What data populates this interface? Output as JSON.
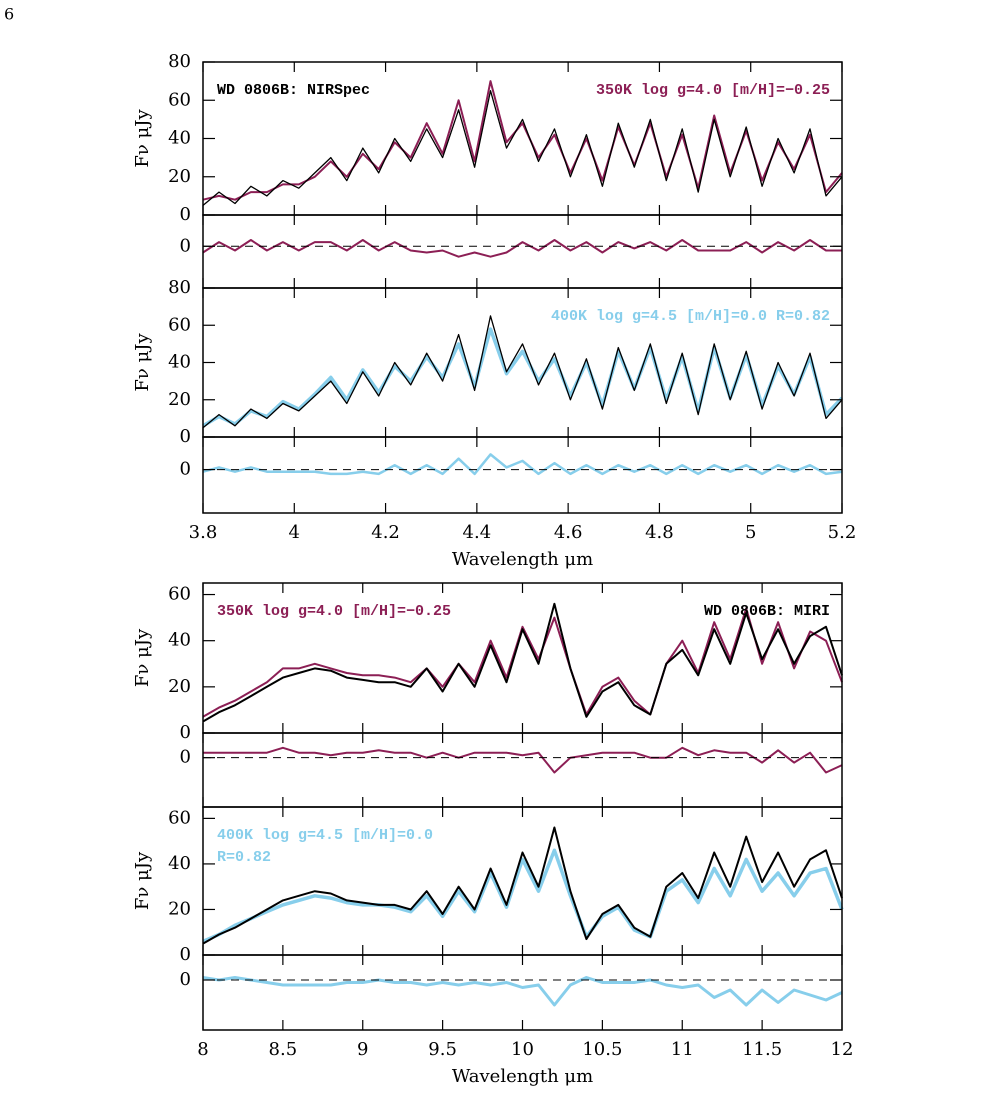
{
  "page_number": "6",
  "chart_data": [
    {
      "type": "line",
      "ylabel": "Fν μJy",
      "xlim": [
        3.8,
        5.2
      ],
      "xticks": [
        3.8,
        4,
        4.2,
        4.4,
        4.6,
        4.8,
        5,
        5.2
      ],
      "ylim": [
        0,
        80
      ],
      "yticks": [
        0,
        20,
        40,
        60,
        80
      ],
      "grid": false,
      "annotations": [
        {
          "text": "WD 0806B: NIRSpec",
          "color": "#000000",
          "position": "left"
        },
        {
          "text": "350K log g=4.0 [m/H]=−0.25",
          "color": "#8c1f55",
          "position": "right"
        }
      ],
      "x": [
        3.8,
        3.835,
        3.87,
        3.905,
        3.94,
        3.975,
        4.01,
        4.045,
        4.08,
        4.115,
        4.15,
        4.185,
        4.22,
        4.255,
        4.29,
        4.325,
        4.36,
        4.395,
        4.43,
        4.465,
        4.5,
        4.535,
        4.57,
        4.605,
        4.64,
        4.675,
        4.71,
        4.745,
        4.78,
        4.815,
        4.85,
        4.885,
        4.92,
        4.955,
        4.99,
        5.025,
        5.06,
        5.095,
        5.13,
        5.165,
        5.2
      ],
      "series": [
        {
          "color": "#8c1f55",
          "width": 2,
          "values": [
            8,
            10,
            8,
            12,
            12,
            16,
            16,
            20,
            28,
            20,
            32,
            24,
            38,
            30,
            48,
            32,
            60,
            28,
            70,
            38,
            48,
            30,
            42,
            22,
            40,
            18,
            46,
            26,
            48,
            20,
            42,
            14,
            52,
            22,
            44,
            18,
            38,
            24,
            42,
            12,
            22
          ]
        },
        {
          "color": "#000000",
          "width": 1.3,
          "values": [
            5,
            12,
            6,
            15,
            10,
            18,
            14,
            22,
            30,
            18,
            35,
            22,
            40,
            28,
            45,
            30,
            55,
            25,
            65,
            35,
            50,
            28,
            45,
            20,
            42,
            15,
            48,
            25,
            50,
            18,
            45,
            12,
            50,
            20,
            46,
            15,
            40,
            22,
            45,
            10,
            20
          ]
        }
      ]
    },
    {
      "type": "line",
      "xlim": [
        3.8,
        5.2
      ],
      "xticks": [
        3.8,
        4,
        4.2,
        4.4,
        4.6,
        4.8,
        5,
        5.2
      ],
      "ylim": [
        -20,
        15
      ],
      "yticks": [
        0
      ],
      "grid": "dashed",
      "x": [
        3.8,
        3.835,
        3.87,
        3.905,
        3.94,
        3.975,
        4.01,
        4.045,
        4.08,
        4.115,
        4.15,
        4.185,
        4.22,
        4.255,
        4.29,
        4.325,
        4.36,
        4.395,
        4.43,
        4.465,
        4.5,
        4.535,
        4.57,
        4.605,
        4.64,
        4.675,
        4.71,
        4.745,
        4.78,
        4.815,
        4.85,
        4.885,
        4.92,
        4.955,
        4.99,
        5.025,
        5.06,
        5.095,
        5.13,
        5.165,
        5.2
      ],
      "series": [
        {
          "color": "#8c1f55",
          "width": 2,
          "values": [
            -3,
            2,
            -2,
            3,
            -2,
            2,
            -2,
            2,
            2,
            -2,
            3,
            -2,
            2,
            -2,
            -3,
            -2,
            -5,
            -3,
            -5,
            -3,
            2,
            -2,
            3,
            -2,
            2,
            -3,
            2,
            -1,
            2,
            -2,
            3,
            -2,
            -2,
            -2,
            2,
            -3,
            2,
            -2,
            3,
            -2,
            -2
          ]
        }
      ]
    },
    {
      "type": "line",
      "ylabel": "Fν μJy",
      "xlim": [
        3.8,
        5.2
      ],
      "xticks": [
        3.8,
        4,
        4.2,
        4.4,
        4.6,
        4.8,
        5,
        5.2
      ],
      "ylim": [
        0,
        80
      ],
      "yticks": [
        0,
        20,
        40,
        60,
        80
      ],
      "grid": false,
      "annotations": [
        {
          "text": "400K log g=4.5 [m/H]=0.0 R=0.82",
          "color": "#87ceeb",
          "position": "right"
        }
      ],
      "x": [
        3.8,
        3.835,
        3.87,
        3.905,
        3.94,
        3.975,
        4.01,
        4.045,
        4.08,
        4.115,
        4.15,
        4.185,
        4.22,
        4.255,
        4.29,
        4.325,
        4.36,
        4.395,
        4.43,
        4.465,
        4.5,
        4.535,
        4.57,
        4.605,
        4.64,
        4.675,
        4.71,
        4.745,
        4.78,
        4.815,
        4.85,
        4.885,
        4.92,
        4.955,
        4.99,
        5.025,
        5.06,
        5.095,
        5.13,
        5.165,
        5.2
      ],
      "series": [
        {
          "color": "#87ceeb",
          "width": 3.5,
          "values": [
            6,
            11,
            7,
            14,
            11,
            19,
            15,
            23,
            32,
            20,
            36,
            24,
            38,
            30,
            43,
            32,
            50,
            27,
            58,
            34,
            46,
            30,
            42,
            22,
            40,
            17,
            46,
            26,
            48,
            20,
            43,
            14,
            48,
            21,
            44,
            17,
            38,
            23,
            43,
            12,
            21
          ]
        },
        {
          "color": "#000000",
          "width": 1.3,
          "values": [
            5,
            12,
            6,
            15,
            10,
            18,
            14,
            22,
            30,
            18,
            35,
            22,
            40,
            28,
            45,
            30,
            55,
            25,
            65,
            35,
            50,
            28,
            45,
            20,
            42,
            15,
            48,
            25,
            50,
            18,
            45,
            12,
            50,
            20,
            46,
            15,
            40,
            22,
            45,
            10,
            20
          ]
        }
      ]
    },
    {
      "type": "line",
      "xlabel": "Wavelength μm",
      "xlim": [
        3.8,
        5.2
      ],
      "xticks": [
        3.8,
        4,
        4.2,
        4.4,
        4.6,
        4.8,
        5,
        5.2
      ],
      "ylim": [
        -20,
        15
      ],
      "yticks": [
        0
      ],
      "grid": "dashed",
      "x": [
        3.8,
        3.835,
        3.87,
        3.905,
        3.94,
        3.975,
        4.01,
        4.045,
        4.08,
        4.115,
        4.15,
        4.185,
        4.22,
        4.255,
        4.29,
        4.325,
        4.36,
        4.395,
        4.43,
        4.465,
        4.5,
        4.535,
        4.57,
        4.605,
        4.64,
        4.675,
        4.71,
        4.745,
        4.78,
        4.815,
        4.85,
        4.885,
        4.92,
        4.955,
        4.99,
        5.025,
        5.06,
        5.095,
        5.13,
        5.165,
        5.2
      ],
      "series": [
        {
          "color": "#87ceeb",
          "width": 2.5,
          "values": [
            -1,
            1,
            -1,
            1,
            -1,
            -1,
            -1,
            -1,
            -2,
            -2,
            -1,
            -2,
            2,
            -2,
            2,
            -2,
            5,
            -2,
            7,
            1,
            4,
            -2,
            3,
            -2,
            2,
            -2,
            2,
            -1,
            2,
            -2,
            2,
            -2,
            2,
            -1,
            2,
            -2,
            2,
            -1,
            2,
            -2,
            -1
          ]
        }
      ]
    },
    {
      "type": "line",
      "ylabel": "Fν μJy",
      "xlim": [
        8,
        12
      ],
      "xticks": [
        8,
        8.5,
        9,
        9.5,
        10,
        10.5,
        11,
        11.5,
        12
      ],
      "ylim": [
        0,
        65
      ],
      "yticks": [
        0,
        20,
        40,
        60
      ],
      "grid": false,
      "annotations": [
        {
          "text": "350K log g=4.0 [m/H]=−0.25",
          "color": "#8c1f55",
          "position": "left"
        },
        {
          "text": "WD 0806B: MIRI",
          "color": "#000000",
          "position": "right"
        }
      ],
      "x": [
        8,
        8.1,
        8.2,
        8.3,
        8.4,
        8.5,
        8.6,
        8.7,
        8.8,
        8.9,
        9,
        9.1,
        9.2,
        9.3,
        9.4,
        9.5,
        9.6,
        9.7,
        9.8,
        9.9,
        10,
        10.1,
        10.2,
        10.3,
        10.4,
        10.5,
        10.6,
        10.7,
        10.8,
        10.9,
        11,
        11.1,
        11.2,
        11.3,
        11.4,
        11.5,
        11.6,
        11.7,
        11.8,
        11.9,
        12
      ],
      "series": [
        {
          "color": "#8c1f55",
          "width": 2,
          "values": [
            7,
            11,
            14,
            18,
            22,
            28,
            28,
            30,
            28,
            26,
            25,
            25,
            24,
            22,
            28,
            20,
            30,
            22,
            40,
            24,
            46,
            32,
            50,
            28,
            8,
            20,
            24,
            14,
            8,
            30,
            40,
            26,
            48,
            32,
            54,
            30,
            48,
            28,
            44,
            40,
            22
          ]
        },
        {
          "color": "#000000",
          "width": 2,
          "values": [
            5,
            9,
            12,
            16,
            20,
            24,
            26,
            28,
            27,
            24,
            23,
            22,
            22,
            20,
            28,
            18,
            30,
            20,
            38,
            22,
            45,
            30,
            56,
            28,
            7,
            18,
            22,
            12,
            8,
            30,
            36,
            25,
            45,
            30,
            52,
            32,
            45,
            30,
            42,
            46,
            25
          ]
        }
      ]
    },
    {
      "type": "line",
      "xlim": [
        8,
        12
      ],
      "xticks": [
        8,
        8.5,
        9,
        9.5,
        10,
        10.5,
        11,
        11.5,
        12
      ],
      "ylim": [
        -20,
        10
      ],
      "yticks": [
        0
      ],
      "grid": "dashed",
      "x": [
        8,
        8.1,
        8.2,
        8.3,
        8.4,
        8.5,
        8.6,
        8.7,
        8.8,
        8.9,
        9,
        9.1,
        9.2,
        9.3,
        9.4,
        9.5,
        9.6,
        9.7,
        9.8,
        9.9,
        10,
        10.1,
        10.2,
        10.3,
        10.4,
        10.5,
        10.6,
        10.7,
        10.8,
        10.9,
        11,
        11.1,
        11.2,
        11.3,
        11.4,
        11.5,
        11.6,
        11.7,
        11.8,
        11.9,
        12
      ],
      "series": [
        {
          "color": "#8c1f55",
          "width": 2,
          "values": [
            2,
            2,
            2,
            2,
            2,
            4,
            2,
            2,
            1,
            2,
            2,
            3,
            2,
            2,
            0,
            2,
            0,
            2,
            2,
            2,
            1,
            2,
            -6,
            0,
            1,
            2,
            2,
            2,
            0,
            0,
            4,
            1,
            3,
            2,
            2,
            -2,
            3,
            -2,
            2,
            -6,
            -3
          ]
        }
      ]
    },
    {
      "type": "line",
      "ylabel": "Fν μJy",
      "xlim": [
        8,
        12
      ],
      "xticks": [
        8,
        8.5,
        9,
        9.5,
        10,
        10.5,
        11,
        11.5,
        12
      ],
      "ylim": [
        0,
        65
      ],
      "yticks": [
        0,
        20,
        40,
        60
      ],
      "grid": false,
      "annotations": [
        {
          "text": "400K log g=4.5 [m/H]=0.0",
          "color": "#87ceeb",
          "position": "left"
        },
        {
          "text": "R=0.82",
          "color": "#87ceeb",
          "position": "left"
        }
      ],
      "x": [
        8,
        8.1,
        8.2,
        8.3,
        8.4,
        8.5,
        8.6,
        8.7,
        8.8,
        8.9,
        9,
        9.1,
        9.2,
        9.3,
        9.4,
        9.5,
        9.6,
        9.7,
        9.8,
        9.9,
        10,
        10.1,
        10.2,
        10.3,
        10.4,
        10.5,
        10.6,
        10.7,
        10.8,
        10.9,
        11,
        11.1,
        11.2,
        11.3,
        11.4,
        11.5,
        11.6,
        11.7,
        11.8,
        11.9,
        12
      ],
      "series": [
        {
          "color": "#87ceeb",
          "width": 3.5,
          "values": [
            6,
            9,
            13,
            16,
            19,
            22,
            24,
            26,
            25,
            23,
            22,
            22,
            21,
            19,
            26,
            17,
            28,
            19,
            36,
            21,
            42,
            28,
            46,
            26,
            8,
            17,
            21,
            11,
            8,
            28,
            33,
            23,
            38,
            26,
            42,
            28,
            36,
            26,
            36,
            38,
            20
          ]
        },
        {
          "color": "#000000",
          "width": 2,
          "values": [
            5,
            9,
            12,
            16,
            20,
            24,
            26,
            28,
            27,
            24,
            23,
            22,
            22,
            20,
            28,
            18,
            30,
            20,
            38,
            22,
            45,
            30,
            56,
            28,
            7,
            18,
            22,
            12,
            8,
            30,
            36,
            25,
            45,
            30,
            52,
            32,
            45,
            30,
            42,
            46,
            25
          ]
        }
      ]
    },
    {
      "type": "line",
      "xlabel": "Wavelength μm",
      "xlim": [
        8,
        12
      ],
      "xticks": [
        8,
        8.5,
        9,
        9.5,
        10,
        10.5,
        11,
        11.5,
        12
      ],
      "ylim": [
        -20,
        10
      ],
      "yticks": [
        0
      ],
      "grid": "dashed",
      "x": [
        8,
        8.1,
        8.2,
        8.3,
        8.4,
        8.5,
        8.6,
        8.7,
        8.8,
        8.9,
        9,
        9.1,
        9.2,
        9.3,
        9.4,
        9.5,
        9.6,
        9.7,
        9.8,
        9.9,
        10,
        10.1,
        10.2,
        10.3,
        10.4,
        10.5,
        10.6,
        10.7,
        10.8,
        10.9,
        11,
        11.1,
        11.2,
        11.3,
        11.4,
        11.5,
        11.6,
        11.7,
        11.8,
        11.9,
        12
      ],
      "series": [
        {
          "color": "#87ceeb",
          "width": 3,
          "values": [
            1,
            0,
            1,
            0,
            -1,
            -2,
            -2,
            -2,
            -2,
            -1,
            -1,
            0,
            -1,
            -1,
            -2,
            -1,
            -2,
            -1,
            -2,
            -1,
            -3,
            -2,
            -10,
            -2,
            1,
            -1,
            -1,
            -1,
            0,
            -2,
            -3,
            -2,
            -7,
            -4,
            -10,
            -4,
            -9,
            -4,
            -6,
            -8,
            -5
          ]
        }
      ]
    }
  ]
}
